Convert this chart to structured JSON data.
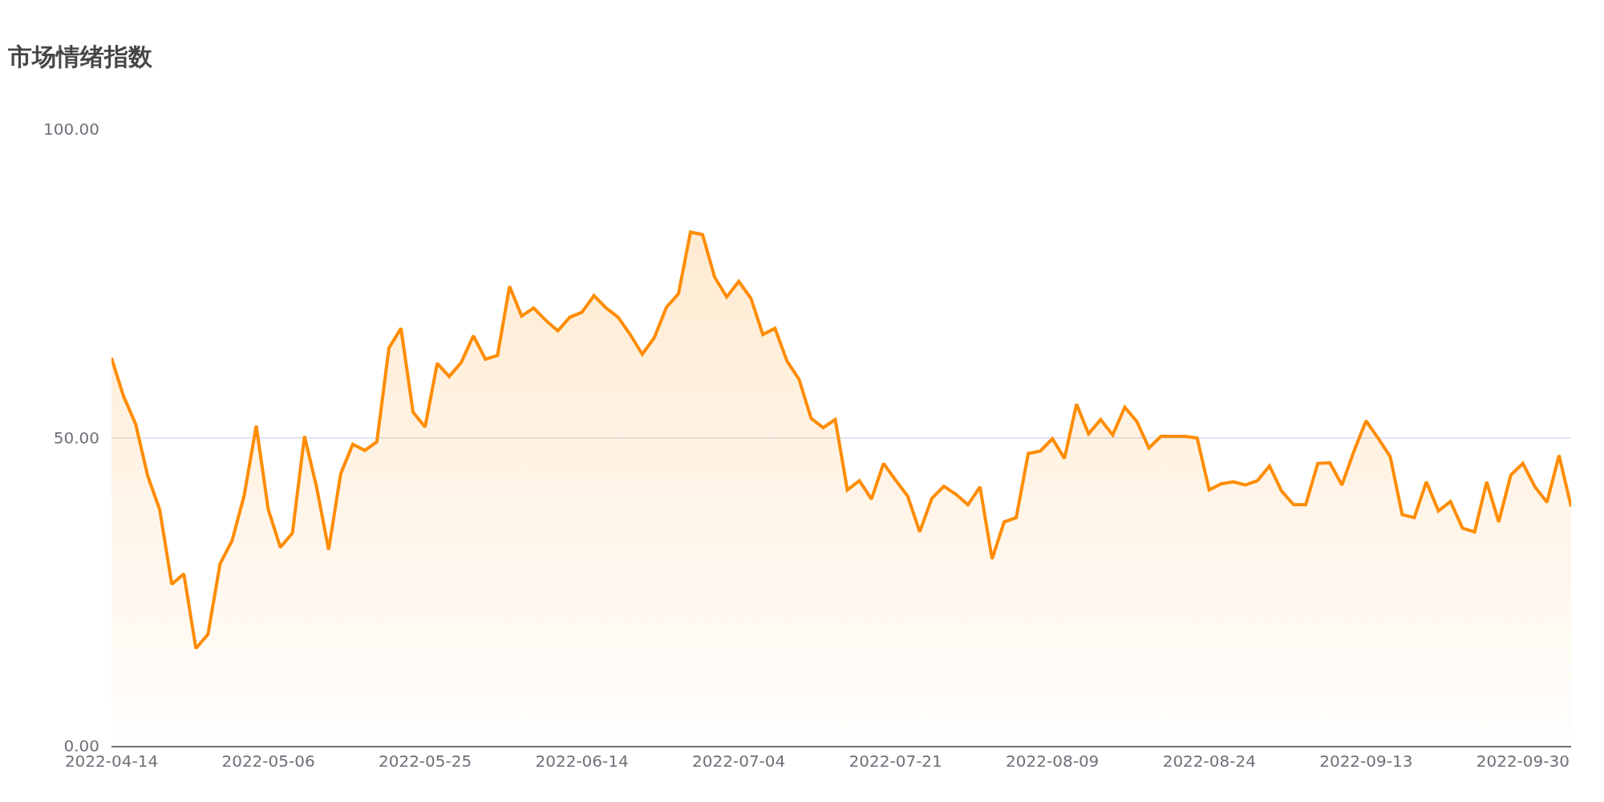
{
  "chart_data": {
    "type": "area",
    "title": "市场情绪指数",
    "categories": [
      "2022-04-14",
      null,
      null,
      null,
      null,
      null,
      null,
      null,
      null,
      null,
      null,
      null,
      null,
      "2022-05-06",
      null,
      null,
      null,
      null,
      null,
      null,
      null,
      null,
      null,
      null,
      null,
      null,
      "2022-05-25",
      null,
      null,
      null,
      null,
      null,
      null,
      null,
      null,
      null,
      null,
      null,
      null,
      "2022-06-14",
      null,
      null,
      null,
      null,
      null,
      null,
      null,
      null,
      null,
      null,
      null,
      null,
      "2022-07-04",
      null,
      null,
      null,
      null,
      null,
      null,
      null,
      null,
      null,
      null,
      null,
      null,
      "2022-07-21",
      null,
      null,
      null,
      null,
      null,
      null,
      null,
      null,
      null,
      null,
      null,
      null,
      "2022-08-09",
      null,
      null,
      null,
      null,
      null,
      null,
      null,
      null,
      null,
      null,
      null,
      null,
      "2022-08-24",
      null,
      null,
      null,
      null,
      null,
      null,
      null,
      null,
      null,
      null,
      null,
      null,
      "2022-09-13",
      null,
      null,
      null,
      null,
      null,
      null,
      null,
      null,
      null,
      null,
      null,
      null,
      "2022-09-30",
      null,
      null,
      null,
      null
    ],
    "values": [
      62.9,
      56.7,
      52.2,
      43.8,
      38.3,
      26.2,
      27.9,
      15.8,
      18.1,
      29.5,
      33.3,
      40.6,
      51.9,
      38.3,
      32.2,
      34.5,
      50.2,
      42.0,
      31.8,
      44.1,
      48.9,
      47.9,
      49.3,
      64.5,
      67.7,
      54.1,
      51.7,
      62.0,
      59.9,
      62.2,
      66.5,
      62.7,
      63.3,
      74.5,
      69.7,
      71.0,
      69.0,
      67.3,
      69.5,
      70.3,
      73.0,
      71.0,
      69.5,
      66.7,
      63.5,
      66.2,
      71.1,
      73.3,
      83.3,
      82.9,
      76.0,
      72.8,
      75.3,
      72.6,
      66.7,
      67.7,
      62.4,
      59.4,
      53.1,
      51.6,
      52.9,
      41.5,
      43.0,
      40.0,
      45.8,
      43.1,
      40.5,
      34.7,
      40.1,
      42.1,
      40.8,
      39.1,
      42.0,
      30.3,
      36.3,
      37.0,
      47.4,
      47.8,
      49.8,
      46.6,
      55.4,
      50.6,
      52.9,
      50.4,
      54.9,
      52.6,
      48.3,
      50.2,
      50.2,
      50.2,
      49.9,
      41.5,
      42.5,
      42.8,
      42.3,
      43.0,
      45.4,
      41.3,
      39.1,
      39.1,
      45.8,
      45.9,
      42.3,
      47.8,
      52.7,
      49.9,
      46.9,
      37.5,
      37.0,
      42.8,
      38.1,
      39.6,
      35.3,
      34.7,
      42.8,
      36.3,
      43.9,
      45.8,
      42.0,
      39.5,
      47.1,
      38.8
    ],
    "color": "#ff8c00",
    "ylim": [
      0,
      100
    ],
    "yticks": [
      {
        "value": 0,
        "label": "0.00"
      },
      {
        "value": 50,
        "label": "50.00"
      },
      {
        "value": 100,
        "label": "100.00"
      }
    ],
    "grid": "y"
  }
}
